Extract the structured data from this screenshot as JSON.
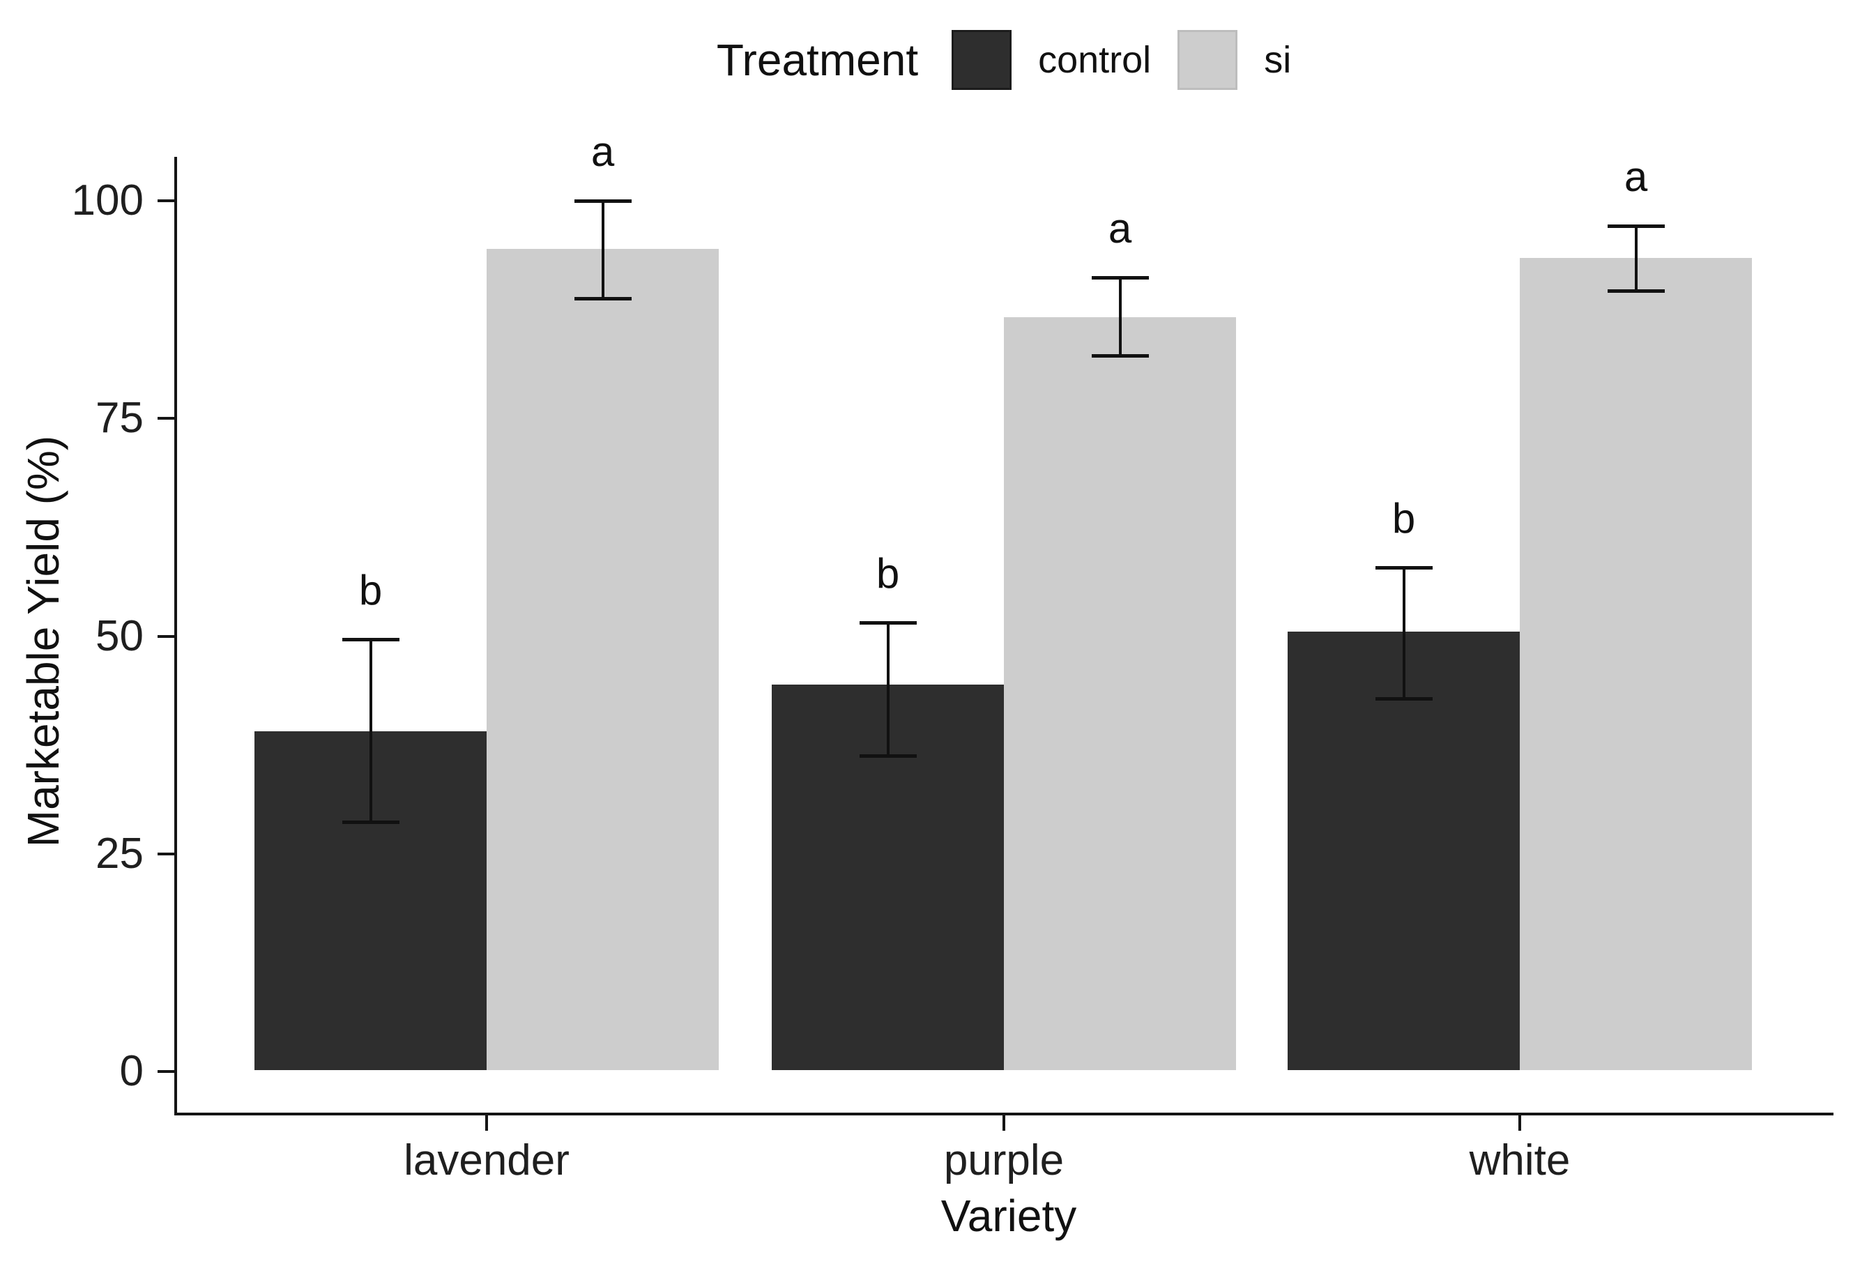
{
  "chart_data": {
    "type": "bar",
    "title": "",
    "xlabel": "Variety",
    "ylabel": "Marketable Yield (%)",
    "categories": [
      "lavender",
      "purple",
      "white"
    ],
    "legend": {
      "title": "Treatment",
      "position": "top",
      "entries": [
        "control",
        "si"
      ]
    },
    "ylim": [
      0,
      105
    ],
    "yticks": [
      0,
      25,
      50,
      75,
      100
    ],
    "grid": false,
    "bar_style": "grouped",
    "series": [
      {
        "name": "control",
        "color": "#2e2e2e",
        "values": [
          39.1,
          44.4,
          50.5
        ],
        "error_low": [
          28.7,
          36.3,
          42.8
        ],
        "error_high": [
          49.6,
          51.6,
          57.9
        ],
        "sig_letters": [
          "b",
          "b",
          "b"
        ]
      },
      {
        "name": "si",
        "color": "#cdcdcd",
        "values": [
          94.5,
          86.6,
          93.4
        ],
        "error_low": [
          88.8,
          82.2,
          89.7
        ],
        "error_high": [
          100.0,
          91.2,
          97.1
        ],
        "sig_letters": [
          "a",
          "a",
          "a"
        ]
      }
    ]
  },
  "colors": {
    "background": "#ffffff",
    "axis": "#151515",
    "error_bar": "#111111",
    "text": "#111111"
  }
}
